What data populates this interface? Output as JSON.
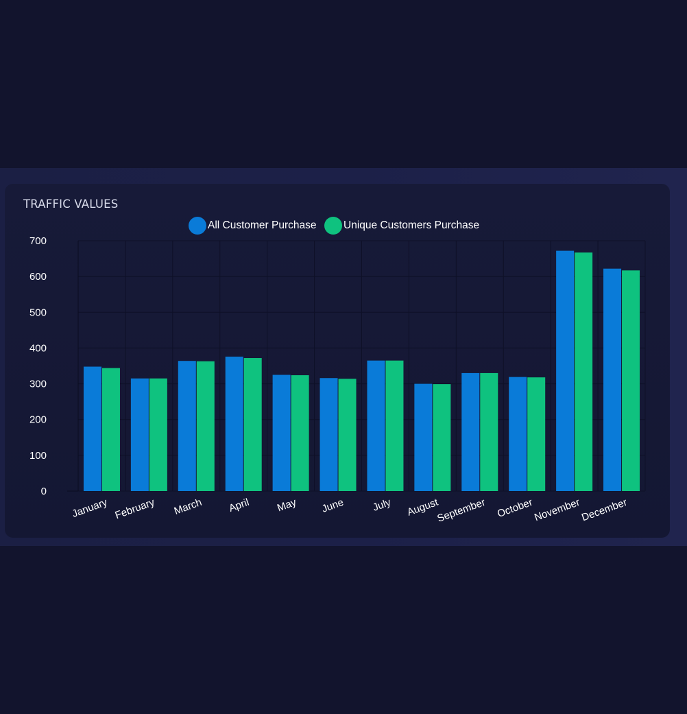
{
  "card": {
    "title": "TRAFFIC VALUES"
  },
  "chart_data": {
    "type": "bar",
    "title": "TRAFFIC VALUES",
    "xlabel": "",
    "ylabel": "",
    "ylim": [
      0,
      700
    ],
    "yticks": [
      0,
      100,
      200,
      300,
      400,
      500,
      600,
      700
    ],
    "grid": true,
    "legend_position": "top-center",
    "categories": [
      "January",
      "February",
      "March",
      "April",
      "May",
      "June",
      "July",
      "August",
      "September",
      "October",
      "November",
      "December"
    ],
    "series": [
      {
        "name": "All Customer Purchase",
        "color": "#0a7bd8",
        "values": [
          348,
          315,
          364,
          376,
          325,
          316,
          365,
          300,
          330,
          319,
          672,
          622
        ]
      },
      {
        "name": "Unique Customers Purchase",
        "color": "#0fc27f",
        "values": [
          344,
          315,
          363,
          372,
          324,
          314,
          365,
          299,
          330,
          318,
          667,
          617
        ]
      }
    ]
  }
}
